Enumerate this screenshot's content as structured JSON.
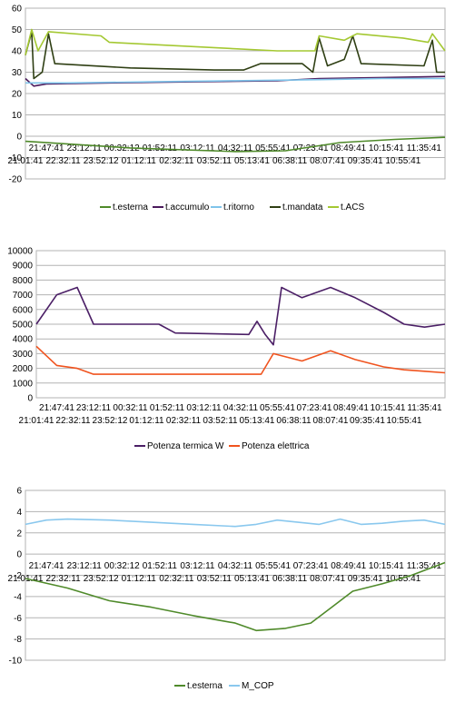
{
  "chart_data": [
    {
      "type": "line",
      "x_ticks_row1": [
        "21:47:41",
        "23:12:11",
        "00:32:12",
        "01:52:11",
        "03:12:11",
        "04:32:11",
        "05:55:41",
        "07:23:41",
        "08:49:41",
        "10:15:41",
        "11:35:41"
      ],
      "x_ticks_row2": [
        "21:01:41",
        "22:32:11",
        "23:52:12",
        "01:12:11",
        "02:32:11",
        "03:52:11",
        "05:13:41",
        "06:38:11",
        "08:07:41",
        "09:35:41",
        "10:55:41"
      ],
      "ylim": [
        -20,
        60
      ],
      "y_ticks": [
        "60",
        "50",
        "40",
        "30",
        "20",
        "10",
        "0",
        "-10",
        "-20"
      ],
      "legend_position": "bottom",
      "series": [
        {
          "name": "t.esterna",
          "color": "#4f8a2a",
          "points": [
            [
              0,
              -2.4
            ],
            [
              0.25,
              -5.5
            ],
            [
              0.5,
              -7.2
            ],
            [
              0.62,
              -6.8
            ],
            [
              0.75,
              -3
            ],
            [
              0.88,
              -1.5
            ],
            [
              1,
              -0.5
            ]
          ]
        },
        {
          "name": "t.accumulo",
          "color": "#4b1a5c",
          "points": [
            [
              0,
              27
            ],
            [
              0.02,
              23.5
            ],
            [
              0.05,
              24.5
            ],
            [
              0.2,
              25
            ],
            [
              0.4,
              25.5
            ],
            [
              0.6,
              26
            ],
            [
              0.7,
              27
            ],
            [
              0.85,
              27.5
            ],
            [
              1,
              28
            ]
          ]
        },
        {
          "name": "t.ritorno",
          "color": "#7fc4ea",
          "points": [
            [
              0,
              25
            ],
            [
              0.1,
              25
            ],
            [
              0.3,
              25.5
            ],
            [
              0.5,
              26
            ],
            [
              0.7,
              26.5
            ],
            [
              0.85,
              27
            ],
            [
              1,
              27
            ]
          ]
        },
        {
          "name": "t.mandata",
          "color": "#2f3f14",
          "points": [
            [
              0,
              38
            ],
            [
              0.015,
              49
            ],
            [
              0.02,
              27
            ],
            [
              0.04,
              30
            ],
            [
              0.055,
              48
            ],
            [
              0.07,
              34
            ],
            [
              0.25,
              32
            ],
            [
              0.45,
              31
            ],
            [
              0.52,
              31
            ],
            [
              0.56,
              34
            ],
            [
              0.66,
              34
            ],
            [
              0.685,
              30
            ],
            [
              0.7,
              46
            ],
            [
              0.72,
              33
            ],
            [
              0.76,
              36
            ],
            [
              0.78,
              47
            ],
            [
              0.8,
              34
            ],
            [
              0.95,
              33
            ],
            [
              0.97,
              45
            ],
            [
              0.98,
              30
            ],
            [
              1,
              30
            ]
          ]
        },
        {
          "name": "t.ACS",
          "color": "#a4c832",
          "points": [
            [
              0,
              38
            ],
            [
              0.015,
              50
            ],
            [
              0.03,
              40
            ],
            [
              0.055,
              49
            ],
            [
              0.18,
              47
            ],
            [
              0.2,
              44
            ],
            [
              0.4,
              42
            ],
            [
              0.6,
              40
            ],
            [
              0.69,
              40
            ],
            [
              0.7,
              47
            ],
            [
              0.76,
              45
            ],
            [
              0.79,
              48
            ],
            [
              0.9,
              46
            ],
            [
              0.96,
              44
            ],
            [
              0.97,
              48
            ],
            [
              1,
              40
            ]
          ]
        }
      ]
    },
    {
      "type": "line",
      "x_ticks_row1": [
        "21:47:41",
        "23:12:11",
        "00:32:11",
        "01:52:11",
        "03:12:11",
        "04:32:11",
        "05:55:41",
        "07:23:41",
        "08:49:41",
        "10:15:41",
        "11:35:41"
      ],
      "x_ticks_row2": [
        "21:01:41",
        "22:32:11",
        "23:52:12",
        "01:12:11",
        "02:32:11",
        "03:52:11",
        "05:13:41",
        "06:38:11",
        "08:07:41",
        "09:35:41",
        "10:55:41"
      ],
      "ylim": [
        0,
        10000
      ],
      "y_ticks": [
        "10000",
        "9000",
        "8000",
        "7000",
        "6000",
        "5000",
        "4000",
        "3000",
        "2000",
        "1000",
        "0"
      ],
      "legend_position": "bottom",
      "series": [
        {
          "name": "Potenza termica W",
          "color": "#4b1f66",
          "points": [
            [
              0,
              5000
            ],
            [
              0.05,
              7000
            ],
            [
              0.1,
              7500
            ],
            [
              0.14,
              5000
            ],
            [
              0.3,
              5000
            ],
            [
              0.34,
              4400
            ],
            [
              0.52,
              4300
            ],
            [
              0.54,
              5200
            ],
            [
              0.56,
              4300
            ],
            [
              0.58,
              3600
            ],
            [
              0.6,
              7500
            ],
            [
              0.65,
              6800
            ],
            [
              0.72,
              7500
            ],
            [
              0.78,
              6800
            ],
            [
              0.85,
              5800
            ],
            [
              0.9,
              5000
            ],
            [
              0.95,
              4800
            ],
            [
              1,
              5000
            ]
          ]
        },
        {
          "name": "Potenza elettrica",
          "color": "#f0531e",
          "points": [
            [
              0,
              3500
            ],
            [
              0.05,
              2200
            ],
            [
              0.1,
              2000
            ],
            [
              0.14,
              1600
            ],
            [
              0.3,
              1600
            ],
            [
              0.34,
              1600
            ],
            [
              0.55,
              1600
            ],
            [
              0.58,
              3000
            ],
            [
              0.65,
              2500
            ],
            [
              0.72,
              3200
            ],
            [
              0.78,
              2600
            ],
            [
              0.85,
              2100
            ],
            [
              0.9,
              1900
            ],
            [
              0.95,
              1800
            ],
            [
              1,
              1700
            ]
          ]
        }
      ]
    },
    {
      "type": "line",
      "x_ticks_row1": [
        "21:47:41",
        "23:12:11",
        "00:32:12",
        "01:52:11",
        "03:12:11",
        "04:32:11",
        "05:55:41",
        "07:23:41",
        "08:49:41",
        "10:15:41",
        "11:35:41"
      ],
      "x_ticks_row2": [
        "21:01:41",
        "22:32:11",
        "23:52:12",
        "01:12:11",
        "02:32:11",
        "03:52:11",
        "05:13:41",
        "06:38:11",
        "08:07:41",
        "09:35:41",
        "10:55:41"
      ],
      "ylim": [
        -10,
        6
      ],
      "y_ticks": [
        "6",
        "4",
        "2",
        "0",
        "-2",
        "-4",
        "-6",
        "-8",
        "-10"
      ],
      "legend_position": "bottom",
      "series": [
        {
          "name": "t.esterna",
          "color": "#4f8a2a",
          "points": [
            [
              0,
              -2.3
            ],
            [
              0.1,
              -3.2
            ],
            [
              0.2,
              -4.4
            ],
            [
              0.3,
              -5
            ],
            [
              0.4,
              -5.8
            ],
            [
              0.5,
              -6.5
            ],
            [
              0.55,
              -7.2
            ],
            [
              0.62,
              -7
            ],
            [
              0.68,
              -6.5
            ],
            [
              0.73,
              -5
            ],
            [
              0.78,
              -3.5
            ],
            [
              0.85,
              -2.8
            ],
            [
              0.92,
              -2
            ],
            [
              1,
              -0.8
            ]
          ]
        },
        {
          "name": "M_COP",
          "color": "#8ac8ee",
          "points": [
            [
              0,
              2.8
            ],
            [
              0.05,
              3.2
            ],
            [
              0.1,
              3.3
            ],
            [
              0.2,
              3.2
            ],
            [
              0.3,
              3
            ],
            [
              0.4,
              2.8
            ],
            [
              0.5,
              2.6
            ],
            [
              0.55,
              2.8
            ],
            [
              0.6,
              3.2
            ],
            [
              0.65,
              3
            ],
            [
              0.7,
              2.8
            ],
            [
              0.75,
              3.3
            ],
            [
              0.8,
              2.8
            ],
            [
              0.85,
              2.9
            ],
            [
              0.9,
              3.1
            ],
            [
              0.95,
              3.2
            ],
            [
              1,
              2.8
            ]
          ]
        }
      ]
    }
  ]
}
